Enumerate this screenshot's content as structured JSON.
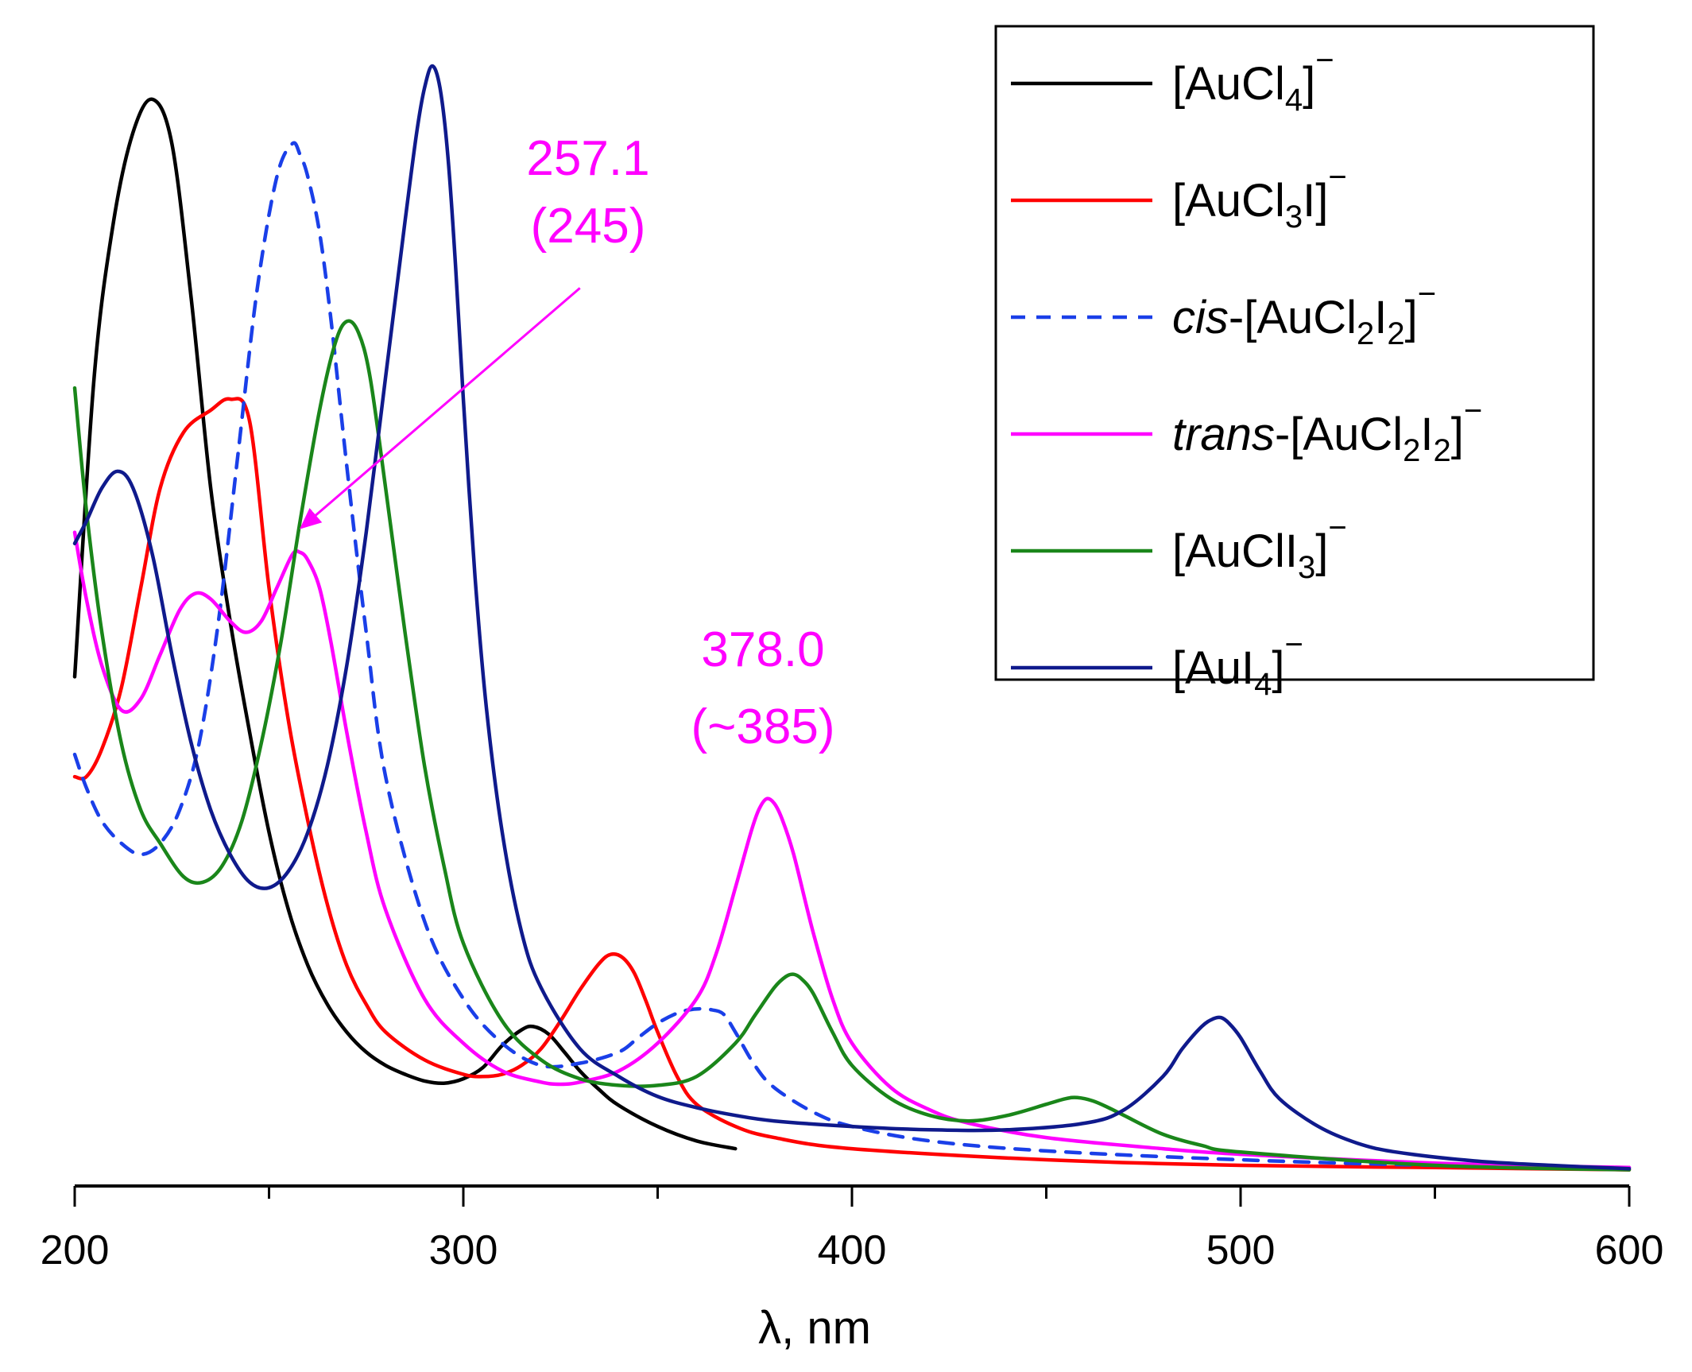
{
  "chart_data": {
    "type": "line",
    "title": "",
    "xlabel": "λ, nm",
    "ylabel": "",
    "xlim": [
      200,
      600
    ],
    "ylim": [
      0,
      1.0
    ],
    "x_ticks": [
      "200",
      "300",
      "400",
      "500",
      "600"
    ],
    "legend_position": "top-right",
    "series": [
      {
        "name": "[AuCl4]−",
        "legend": {
          "pre": "",
          "parts": [
            [
              "[AuCl",
              "n"
            ],
            [
              "4",
              "sub"
            ],
            [
              "]",
              "n"
            ],
            [
              "−",
              "sup"
            ]
          ]
        },
        "color": "#000000",
        "dash": "",
        "x": [
          200,
          205,
          210,
          215,
          220,
          225,
          230,
          235,
          240,
          245,
          250,
          255,
          260,
          265,
          270,
          275,
          280,
          285,
          290,
          295,
          300,
          305,
          310,
          315,
          318,
          322,
          326,
          330,
          335,
          340,
          350,
          360,
          370
        ],
        "y": [
          0.45,
          0.72,
          0.86,
          0.94,
          0.97,
          0.93,
          0.79,
          0.62,
          0.5,
          0.4,
          0.31,
          0.24,
          0.19,
          0.155,
          0.13,
          0.112,
          0.1,
          0.092,
          0.086,
          0.084,
          0.088,
          0.098,
          0.118,
          0.132,
          0.135,
          0.128,
          0.112,
          0.095,
          0.078,
          0.064,
          0.045,
          0.032,
          0.025
        ]
      },
      {
        "name": "[AuCl3I]−",
        "legend": {
          "pre": "",
          "parts": [
            [
              "[AuCl",
              "n"
            ],
            [
              "3",
              "sub"
            ],
            [
              "I]",
              "n"
            ],
            [
              "−",
              "sup"
            ]
          ]
        },
        "color": "#ff0000",
        "dash": "",
        "x": [
          200,
          203,
          207,
          212,
          217,
          222,
          228,
          235,
          240,
          245,
          250,
          255,
          260,
          265,
          270,
          275,
          280,
          290,
          300,
          305,
          310,
          315,
          320,
          325,
          330,
          335,
          338,
          341,
          344,
          347,
          350,
          355,
          360,
          370,
          380,
          400,
          450,
          500,
          550,
          600
        ],
        "y": [
          0.36,
          0.36,
          0.385,
          0.44,
          0.53,
          0.62,
          0.67,
          0.69,
          0.7,
          0.68,
          0.53,
          0.41,
          0.32,
          0.245,
          0.19,
          0.155,
          0.13,
          0.105,
          0.092,
          0.09,
          0.092,
          0.1,
          0.115,
          0.14,
          0.168,
          0.192,
          0.2,
          0.197,
          0.183,
          0.158,
          0.13,
          0.09,
          0.065,
          0.045,
          0.035,
          0.025,
          0.015,
          0.01,
          0.008,
          0.006
        ]
      },
      {
        "name": "cis-[AuCl2I2]−",
        "legend": {
          "pre": "cis",
          "parts": [
            [
              "-[AuCl",
              "n"
            ],
            [
              "2",
              "sub"
            ],
            [
              "I",
              "n"
            ],
            [
              "2",
              "sub"
            ],
            [
              "]",
              "n"
            ],
            [
              "−",
              "sup"
            ]
          ]
        },
        "color": "#1a3fe8",
        "dash": "18,14",
        "x": [
          200,
          203,
          207,
          212,
          217,
          222,
          227,
          232,
          237,
          242,
          247,
          252,
          256,
          258,
          260,
          263,
          266,
          270,
          275,
          280,
          290,
          300,
          310,
          320,
          330,
          340,
          345,
          350,
          355,
          358,
          361,
          364,
          367,
          370,
          375,
          380,
          390,
          400,
          420,
          450,
          500,
          550,
          600
        ],
        "y": [
          0.38,
          0.35,
          0.32,
          0.3,
          0.29,
          0.3,
          0.33,
          0.39,
          0.5,
          0.65,
          0.8,
          0.9,
          0.93,
          0.92,
          0.9,
          0.85,
          0.77,
          0.64,
          0.49,
          0.36,
          0.23,
          0.16,
          0.12,
          0.1,
          0.102,
          0.112,
          0.125,
          0.138,
          0.147,
          0.15,
          0.151,
          0.15,
          0.146,
          0.13,
          0.1,
          0.08,
          0.058,
          0.045,
          0.032,
          0.023,
          0.015,
          0.01,
          0.008
        ]
      },
      {
        "name": "trans-[AuCl2I2]−",
        "legend": {
          "pre": "trans",
          "parts": [
            [
              "-[AuCl",
              "n"
            ],
            [
              "2",
              "sub"
            ],
            [
              "I",
              "n"
            ],
            [
              "2",
              "sub"
            ],
            [
              "]",
              "n"
            ],
            [
              "−",
              "sup"
            ]
          ]
        },
        "color": "#ff00ff",
        "dash": "",
        "x": [
          200,
          203,
          207,
          212,
          217,
          222,
          227,
          231,
          235,
          240,
          244,
          248,
          252,
          256,
          258,
          260,
          263,
          266,
          270,
          275,
          280,
          290,
          300,
          310,
          320,
          325,
          330,
          340,
          350,
          360,
          365,
          370,
          374,
          376,
          378,
          380,
          382,
          385,
          390,
          395,
          400,
          410,
          420,
          430,
          450,
          480,
          500,
          550,
          600
        ],
        "y": [
          0.58,
          0.52,
          0.46,
          0.42,
          0.43,
          0.47,
          0.51,
          0.525,
          0.52,
          0.5,
          0.49,
          0.5,
          0.53,
          0.56,
          0.562,
          0.555,
          0.53,
          0.48,
          0.4,
          0.31,
          0.24,
          0.16,
          0.12,
          0.095,
          0.085,
          0.083,
          0.085,
          0.095,
          0.12,
          0.16,
          0.2,
          0.26,
          0.31,
          0.33,
          0.34,
          0.336,
          0.322,
          0.29,
          0.22,
          0.16,
          0.12,
          0.08,
          0.06,
          0.048,
          0.035,
          0.025,
          0.02,
          0.012,
          0.008
        ]
      },
      {
        "name": "[AuClI3]−",
        "legend": {
          "pre": "",
          "parts": [
            [
              "[AuClI",
              "n"
            ],
            [
              "3",
              "sub"
            ],
            [
              "]",
              "n"
            ],
            [
              "−",
              "sup"
            ]
          ]
        },
        "color": "#1a861a",
        "dash": "",
        "x": [
          200,
          203,
          207,
          212,
          217,
          222,
          228,
          233,
          238,
          243,
          248,
          253,
          258,
          263,
          267,
          270,
          273,
          276,
          280,
          285,
          290,
          295,
          300,
          310,
          320,
          330,
          340,
          350,
          360,
          370,
          375,
          380,
          383,
          385,
          387,
          390,
          395,
          400,
          410,
          420,
          430,
          440,
          450,
          455,
          458,
          462,
          466,
          470,
          480,
          490,
          500,
          550,
          600
        ],
        "y": [
          0.71,
          0.6,
          0.49,
          0.39,
          0.33,
          0.3,
          0.27,
          0.265,
          0.28,
          0.32,
          0.39,
          0.48,
          0.59,
          0.69,
          0.75,
          0.77,
          0.76,
          0.72,
          0.62,
          0.49,
          0.37,
          0.28,
          0.21,
          0.14,
          0.105,
          0.088,
          0.082,
          0.082,
          0.09,
          0.12,
          0.145,
          0.17,
          0.18,
          0.182,
          0.178,
          0.165,
          0.13,
          0.1,
          0.07,
          0.055,
          0.05,
          0.055,
          0.065,
          0.07,
          0.071,
          0.068,
          0.062,
          0.055,
          0.038,
          0.028,
          0.022,
          0.01,
          0.006
        ]
      },
      {
        "name": "[AuI4]−",
        "legend": {
          "pre": "",
          "parts": [
            [
              "[AuI",
              "n"
            ],
            [
              "4",
              "sub"
            ],
            [
              "]",
              "n"
            ],
            [
              "−",
              "sup"
            ]
          ]
        },
        "color": "#0f1a8c",
        "dash": "",
        "x": [
          200,
          203,
          207,
          211,
          215,
          220,
          225,
          230,
          235,
          240,
          245,
          250,
          255,
          260,
          265,
          270,
          275,
          280,
          285,
          288,
          290,
          292,
          294,
          296,
          298,
          300,
          303,
          306,
          310,
          315,
          320,
          330,
          340,
          350,
          360,
          370,
          380,
          400,
          420,
          440,
          460,
          470,
          480,
          485,
          490,
          493,
          495,
          497,
          500,
          505,
          510,
          520,
          530,
          540,
          560,
          580,
          600
        ],
        "y": [
          0.57,
          0.59,
          0.62,
          0.635,
          0.62,
          0.56,
          0.47,
          0.39,
          0.33,
          0.29,
          0.265,
          0.26,
          0.275,
          0.31,
          0.37,
          0.46,
          0.58,
          0.72,
          0.86,
          0.94,
          0.98,
          1.0,
          0.98,
          0.92,
          0.82,
          0.7,
          0.54,
          0.42,
          0.31,
          0.22,
          0.17,
          0.115,
          0.09,
          0.072,
          0.062,
          0.055,
          0.05,
          0.045,
          0.042,
          0.042,
          0.048,
          0.06,
          0.09,
          0.115,
          0.135,
          0.142,
          0.143,
          0.138,
          0.125,
          0.095,
          0.07,
          0.045,
          0.03,
          0.022,
          0.014,
          0.01,
          0.007
        ]
      }
    ],
    "annotations": [
      {
        "line1": "257.1",
        "line2": "(245)",
        "color": "#ff00ff",
        "arrow_to": {
          "x": 257.1,
          "y": 0.58
        },
        "arrow_from": {
          "x": 330,
          "y": 0.8
        }
      },
      {
        "line1": "378.0",
        "line2": "(~385)",
        "color": "#ff00ff"
      }
    ]
  }
}
